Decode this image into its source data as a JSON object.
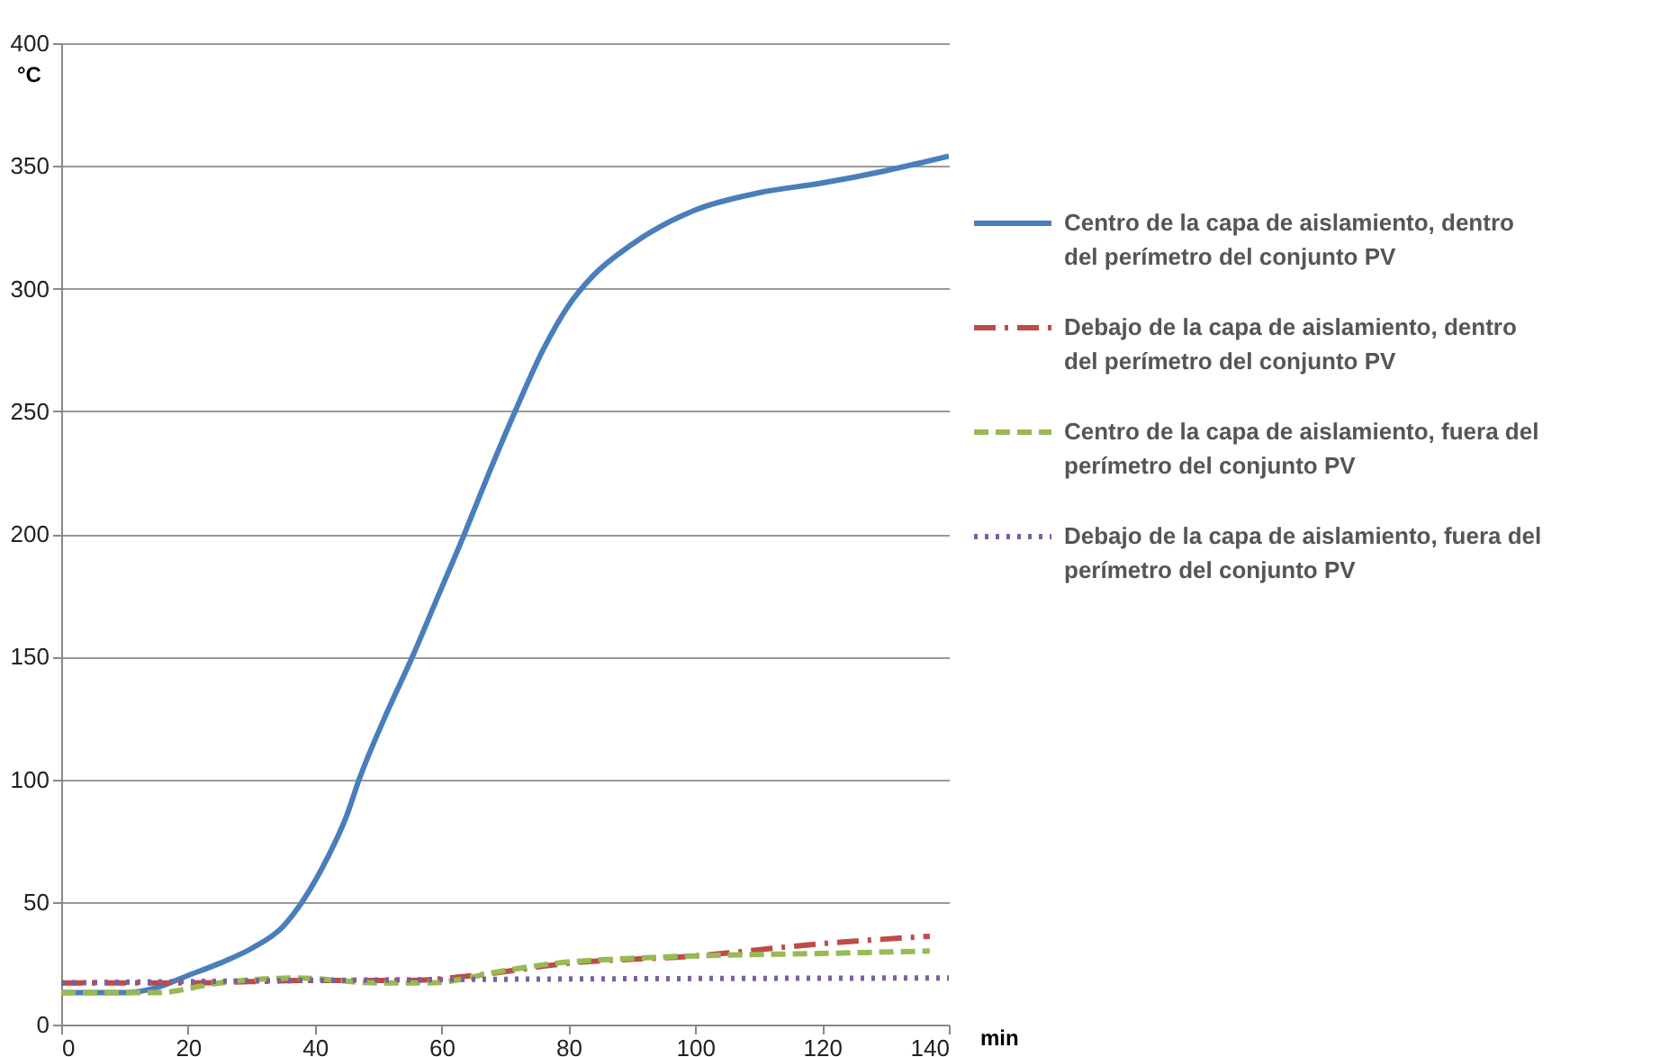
{
  "chart_data": {
    "type": "line",
    "ylabel": "°C",
    "xlabel": "min",
    "xlim": [
      0,
      140
    ],
    "xticks": [
      0,
      20,
      40,
      60,
      80,
      100,
      120,
      140
    ],
    "ylim": [
      0,
      400
    ],
    "yticks": [
      0,
      50,
      100,
      150,
      200,
      250,
      300,
      350,
      400
    ],
    "grid": "y",
    "legend": "right",
    "marker": "none",
    "series": [
      {
        "name": "Centro de la capa de aislamiento, dentro del perímetro del conjunto PV",
        "color": "#4a7ebb",
        "line_style": "solid",
        "x": [
          0,
          10,
          15,
          20,
          25,
          30,
          35,
          38,
          42,
          45,
          47,
          51,
          55.4,
          59.5,
          63.6,
          67.5,
          71.6,
          76,
          80,
          83.8,
          90,
          100,
          110,
          120,
          130,
          140
        ],
        "values": [
          13,
          13,
          15,
          20,
          25,
          31,
          40,
          50,
          68,
          85,
          100,
          125,
          150,
          175,
          200,
          225,
          250,
          275,
          293,
          305,
          318,
          332,
          339,
          343,
          348,
          354
        ]
      },
      {
        "name": "Debajo de la capa de aislamiento, dentro del perímetro del conjunto PV",
        "color": "#be4b48",
        "line_style": "dashdot",
        "x": [
          0,
          20,
          40,
          55,
          65,
          80,
          100,
          120,
          137
        ],
        "values": [
          17,
          17,
          18,
          18,
          20,
          25,
          28,
          33,
          36
        ]
      },
      {
        "name": "Centro de la capa de aislamiento, fuera del perímetro del conjunto PV",
        "color": "#98b954",
        "line_style": "dashed",
        "x": [
          0,
          15,
          25,
          37,
          50,
          58,
          70,
          78,
          90,
          100,
          120,
          137
        ],
        "values": [
          13,
          13,
          17,
          19,
          17,
          17,
          22,
          25,
          27,
          28,
          29,
          30
        ]
      },
      {
        "name": "Debajo de la capa de aislamiento, fuera del perímetro del conjunto PV",
        "color": "#7d5fa0",
        "line_style": "dotted",
        "x": [
          0,
          40,
          140
        ],
        "values": [
          17,
          18,
          19
        ]
      }
    ]
  }
}
